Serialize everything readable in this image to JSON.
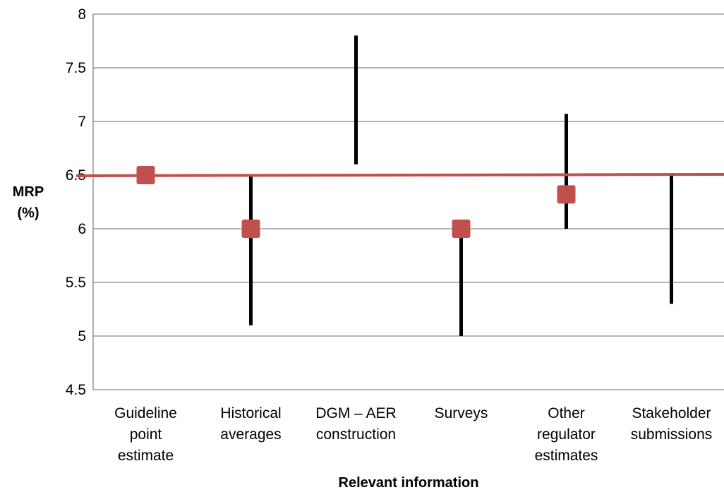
{
  "chart_data": {
    "type": "scatter",
    "ylabel": "MRP\n(%)",
    "xlabel": "Relevant information",
    "ylim": [
      4.5,
      8
    ],
    "yticks": [
      "4.5",
      "5",
      "5.5",
      "6",
      "6.5",
      "7",
      "7.5",
      "8"
    ],
    "grid": true,
    "categories": [
      "Guideline\npoint\nestimate",
      "Historical\naverages",
      "DGM – AER\nconstruction",
      "Surveys",
      "Other\nregulator\nestimates",
      "Stakeholder\nsubmissions"
    ],
    "ranges": [
      null,
      {
        "low": 5.1,
        "high": 6.5
      },
      {
        "low": 6.6,
        "high": 7.8
      },
      {
        "low": 5.0,
        "high": 6.0
      },
      {
        "low": 6.0,
        "high": 7.07
      },
      {
        "low": 5.3,
        "high": 6.5
      }
    ],
    "point_estimates": [
      6.5,
      6.0,
      null,
      6.0,
      6.32,
      null
    ],
    "reference_line": {
      "value": 6.5
    },
    "colors": {
      "range": "#000000",
      "point": "#c0504d",
      "reference_line": "#c0504d",
      "grid": "#868686"
    }
  }
}
